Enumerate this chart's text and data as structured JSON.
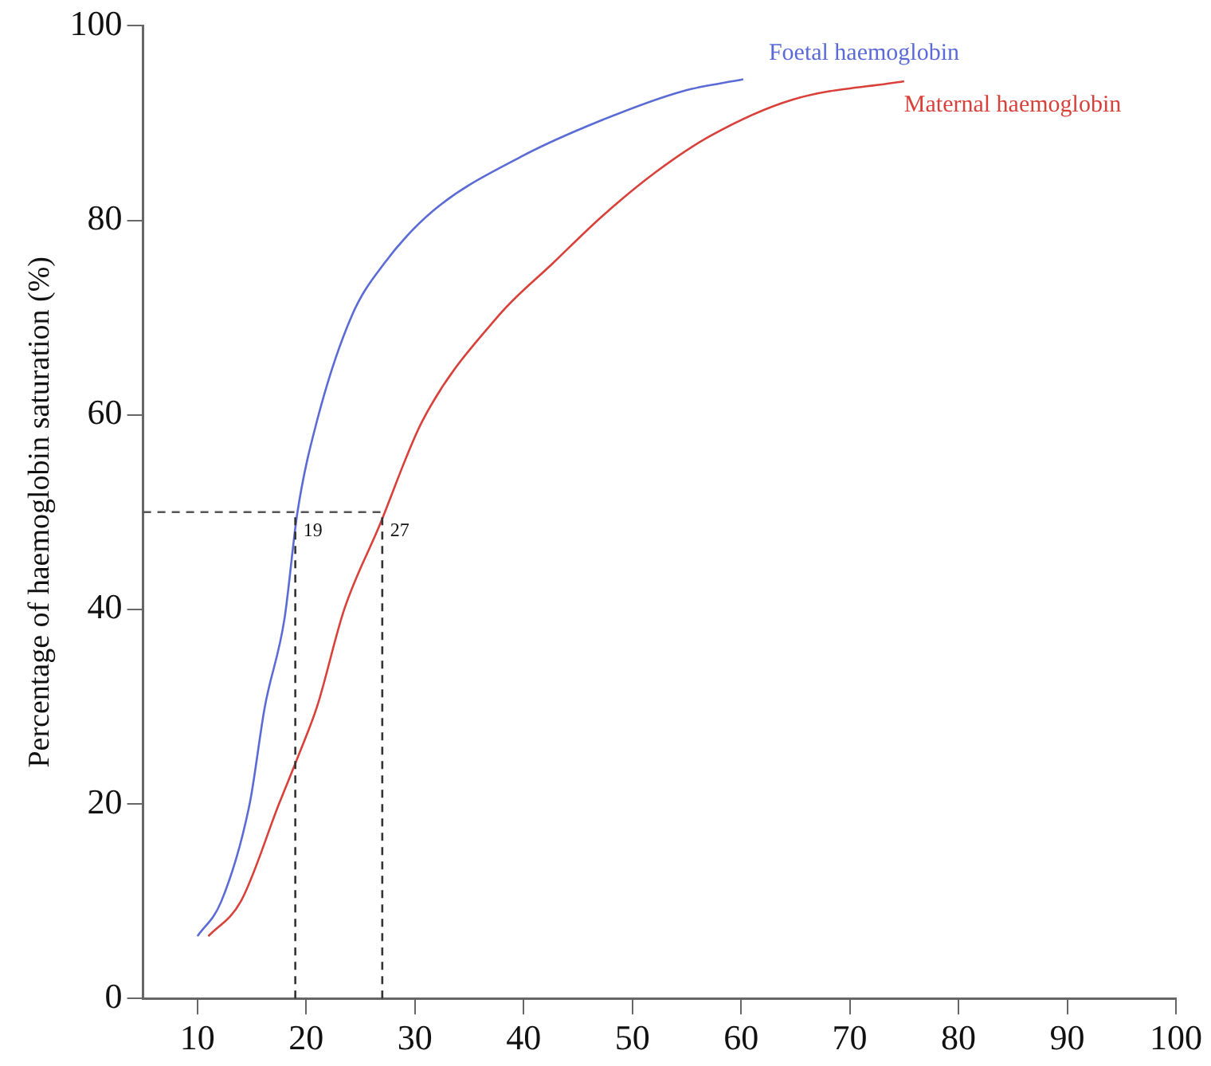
{
  "chart_data": {
    "type": "line",
    "ylabel": "Percentage of haemoglobin saturation (%)",
    "xlim": [
      5,
      100
    ],
    "xticks": [
      10,
      20,
      30,
      40,
      50,
      60,
      70,
      80,
      90,
      100
    ],
    "ylim": [
      0,
      100
    ],
    "yticks": [
      0,
      20,
      40,
      60,
      80,
      100
    ],
    "grid": false,
    "legend": false,
    "marker": "none",
    "line_style": "solid",
    "series": [
      {
        "name": "Foetal haemoglobin",
        "color": "#5b6bd6",
        "x": [
          10,
          12.2,
          14.8,
          16.2,
          18,
          19.2,
          21,
          24.2,
          27.2,
          31.7,
          39.7,
          47.2,
          54.7,
          60.2
        ],
        "values": [
          6.4,
          10,
          20,
          30,
          39,
          50,
          59.4,
          70.2,
          75.6,
          81,
          86.5,
          90.3,
          93.3,
          94.5
        ]
      },
      {
        "name": "Maternal haemoglobin",
        "color": "#d9403a",
        "x": [
          11,
          14,
          17.5,
          19.3,
          21,
          23.5,
          26.7,
          30.7,
          37.7,
          42.7,
          47.2,
          52.2,
          57.2,
          64.7,
          75
        ],
        "values": [
          6.4,
          10,
          20,
          25,
          30,
          40,
          48.5,
          59.4,
          70.2,
          75.6,
          80.4,
          85,
          88.7,
          92.4,
          94.3
        ]
      }
    ],
    "ref_lines": [
      {
        "axis": "y",
        "value": 50,
        "label": null,
        "color": "#555555",
        "line_style": "dashed"
      },
      {
        "axis": "x",
        "value": 19,
        "label": "19",
        "color": "#333333",
        "line_style": "dashed"
      },
      {
        "axis": "x",
        "value": 27,
        "label": "27",
        "color": "#333333",
        "line_style": "dashed"
      }
    ]
  }
}
